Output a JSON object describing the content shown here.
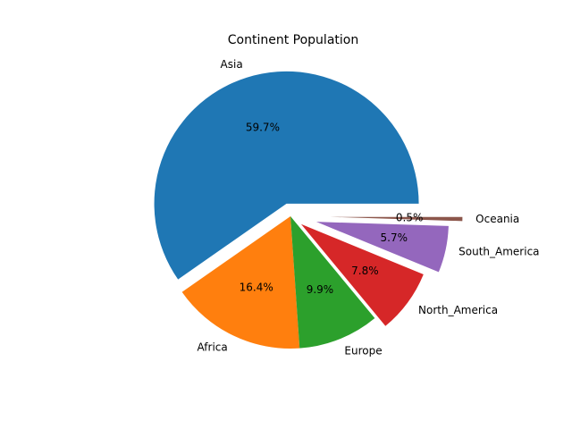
{
  "chart_data": {
    "type": "pie",
    "title": "Continent Population",
    "slices": [
      {
        "label": "Asia",
        "percent": 59.7,
        "pct_label": "59.7%",
        "color": "#1f77b4",
        "explode": 0.1
      },
      {
        "label": "Africa",
        "percent": 16.4,
        "pct_label": "16.4%",
        "color": "#ff7f0e",
        "explode": 0.0
      },
      {
        "label": "Europe",
        "percent": 9.9,
        "pct_label": "9.9%",
        "color": "#2ca02c",
        "explode": 0.0
      },
      {
        "label": "North_America",
        "percent": 7.8,
        "pct_label": "7.8%",
        "color": "#d62728",
        "explode": 0.1
      },
      {
        "label": "South_America",
        "percent": 5.7,
        "pct_label": "5.7%",
        "color": "#9467bd",
        "explode": 0.2
      },
      {
        "label": "Oceania",
        "percent": 0.5,
        "pct_label": "0.5%",
        "color": "#8c564b",
        "explode": 0.3
      }
    ]
  }
}
